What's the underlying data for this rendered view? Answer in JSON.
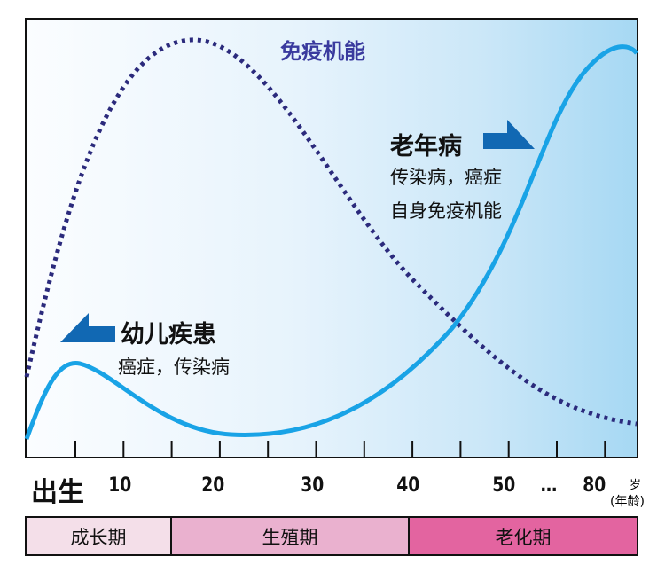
{
  "title": "免疫机能",
  "elderly": {
    "heading": "老年病",
    "line1": "传染病，癌症",
    "line2": "自身免疫机能"
  },
  "child": {
    "heading": "幼儿疾患",
    "line1": "癌症，传染病"
  },
  "axis": {
    "start": "出生",
    "ticks": [
      "10",
      "20",
      "30",
      "40",
      "50",
      "…",
      "80"
    ],
    "unit": "岁",
    "unit_note": "(年龄)"
  },
  "stages": [
    {
      "label": "成长期",
      "color": "#f4dfe9"
    },
    {
      "label": "生殖期",
      "color": "#eab1cf"
    },
    {
      "label": "老化期",
      "color": "#e364a0"
    }
  ],
  "colors": {
    "disease_curve": "#19a3e6",
    "immune_curve": "#2b2a7c",
    "arrow": "#1168b3",
    "title": "#3a3a9e"
  }
}
